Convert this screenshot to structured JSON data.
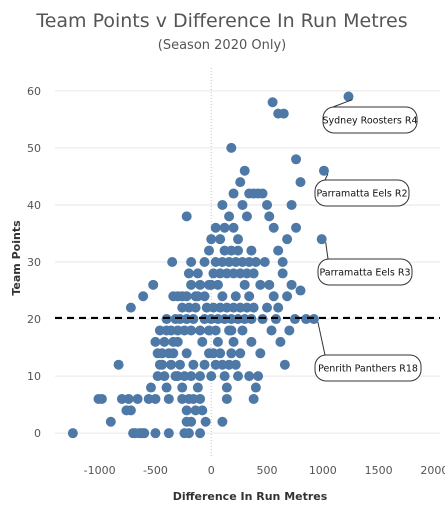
{
  "chart_data": {
    "type": "scatter",
    "title": "Team Points v Difference In Run Metres",
    "subtitle": "(Season 2020 Only)",
    "xlabel": "Difference In Run Metres",
    "ylabel": "Team Points",
    "xlim": [
      -1400,
      2050
    ],
    "ylim": [
      -4,
      64
    ],
    "xticks": [
      -1000,
      -500,
      0,
      500,
      1000,
      1500,
      2000
    ],
    "xtick_labels": [
      "-1000",
      "-500",
      "0",
      "500",
      "1000",
      "1500",
      "2000"
    ],
    "yticks": [
      0,
      10,
      20,
      30,
      40,
      50,
      60
    ],
    "ytick_labels": [
      "0",
      "10",
      "20",
      "30",
      "40",
      "50",
      "60"
    ],
    "grid": true,
    "marker_color": "#4e79a7",
    "reference_line": {
      "y": 20.2,
      "style": "dashed",
      "color": "#000000"
    },
    "annotations": [
      {
        "label": "Sydney Roosters R4",
        "x": 1230,
        "y": 59
      },
      {
        "label": "Parramatta Eels R2",
        "x": 1010,
        "y": 46
      },
      {
        "label": "Parramatta Eels R3",
        "x": 990,
        "y": 34
      },
      {
        "label": "Penrith Panthers R18",
        "x": 920,
        "y": 20
      }
    ],
    "points": [
      [
        -1240,
        0
      ],
      [
        -1010,
        6
      ],
      [
        -980,
        6
      ],
      [
        -900,
        2
      ],
      [
        -830,
        12
      ],
      [
        -800,
        6
      ],
      [
        -760,
        4
      ],
      [
        -740,
        6
      ],
      [
        -720,
        4
      ],
      [
        -700,
        0
      ],
      [
        -680,
        0
      ],
      [
        -660,
        6
      ],
      [
        -640,
        0
      ],
      [
        -620,
        0
      ],
      [
        -600,
        0
      ],
      [
        -500,
        0
      ],
      [
        -380,
        0
      ],
      [
        -240,
        0
      ],
      [
        -200,
        0
      ],
      [
        -100,
        0
      ],
      [
        -50,
        2
      ],
      [
        -220,
        2
      ],
      [
        -720,
        22
      ],
      [
        -610,
        24
      ],
      [
        -520,
        26
      ],
      [
        -400,
        20
      ],
      [
        -560,
        6
      ],
      [
        -540,
        8
      ],
      [
        -500,
        6
      ],
      [
        -480,
        10
      ],
      [
        -460,
        12
      ],
      [
        -440,
        14
      ],
      [
        -420,
        10
      ],
      [
        -400,
        8
      ],
      [
        -380,
        6
      ],
      [
        -360,
        12
      ],
      [
        -340,
        14
      ],
      [
        -320,
        10
      ],
      [
        -300,
        16
      ],
      [
        -280,
        12
      ],
      [
        -260,
        8
      ],
      [
        -240,
        10
      ],
      [
        -220,
        14
      ],
      [
        -200,
        6
      ],
      [
        -180,
        10
      ],
      [
        -160,
        12
      ],
      [
        -140,
        4
      ],
      [
        -120,
        8
      ],
      [
        -100,
        6
      ],
      [
        -80,
        4
      ],
      [
        -500,
        16
      ],
      [
        -480,
        14
      ],
      [
        -460,
        18
      ],
      [
        -440,
        12
      ],
      [
        -420,
        16
      ],
      [
        -400,
        18
      ],
      [
        -380,
        14
      ],
      [
        -360,
        18
      ],
      [
        -340,
        16
      ],
      [
        -320,
        20
      ],
      [
        -300,
        18
      ],
      [
        -280,
        20
      ],
      [
        -260,
        22
      ],
      [
        -240,
        18
      ],
      [
        -220,
        20
      ],
      [
        -200,
        22
      ],
      [
        -180,
        18
      ],
      [
        -160,
        20
      ],
      [
        -140,
        22
      ],
      [
        -120,
        24
      ],
      [
        -100,
        18
      ],
      [
        -80,
        16
      ],
      [
        -60,
        20
      ],
      [
        -40,
        22
      ],
      [
        -20,
        18
      ],
      [
        -340,
        24
      ],
      [
        -300,
        24
      ],
      [
        -260,
        24
      ],
      [
        -220,
        24
      ],
      [
        -180,
        26
      ],
      [
        -140,
        24
      ],
      [
        -100,
        26
      ],
      [
        -60,
        24
      ],
      [
        -20,
        26
      ],
      [
        -300,
        10
      ],
      [
        -260,
        6
      ],
      [
        -220,
        4
      ],
      [
        -180,
        2
      ],
      [
        -160,
        6
      ],
      [
        -100,
        10
      ],
      [
        -60,
        12
      ],
      [
        -20,
        14
      ],
      [
        -350,
        30
      ],
      [
        -200,
        28
      ],
      [
        -180,
        30
      ],
      [
        -120,
        28
      ],
      [
        -60,
        30
      ],
      [
        -20,
        32
      ],
      [
        0,
        10
      ],
      [
        20,
        14
      ],
      [
        40,
        12
      ],
      [
        60,
        16
      ],
      [
        80,
        14
      ],
      [
        100,
        12
      ],
      [
        120,
        10
      ],
      [
        140,
        8
      ],
      [
        160,
        12
      ],
      [
        180,
        14
      ],
      [
        200,
        16
      ],
      [
        220,
        12
      ],
      [
        240,
        10
      ],
      [
        260,
        14
      ],
      [
        180,
        18
      ],
      [
        140,
        6
      ],
      [
        100,
        2
      ],
      [
        0,
        20
      ],
      [
        20,
        22
      ],
      [
        40,
        18
      ],
      [
        60,
        20
      ],
      [
        80,
        22
      ],
      [
        100,
        24
      ],
      [
        120,
        20
      ],
      [
        140,
        22
      ],
      [
        160,
        18
      ],
      [
        180,
        20
      ],
      [
        200,
        22
      ],
      [
        220,
        24
      ],
      [
        240,
        20
      ],
      [
        260,
        22
      ],
      [
        280,
        18
      ],
      [
        300,
        20
      ],
      [
        320,
        22
      ],
      [
        340,
        24
      ],
      [
        360,
        20
      ],
      [
        380,
        22
      ],
      [
        0,
        26
      ],
      [
        20,
        28
      ],
      [
        40,
        30
      ],
      [
        60,
        26
      ],
      [
        80,
        28
      ],
      [
        100,
        30
      ],
      [
        120,
        32
      ],
      [
        140,
        28
      ],
      [
        160,
        30
      ],
      [
        180,
        32
      ],
      [
        200,
        28
      ],
      [
        220,
        30
      ],
      [
        240,
        32
      ],
      [
        260,
        28
      ],
      [
        280,
        30
      ],
      [
        300,
        26
      ],
      [
        320,
        28
      ],
      [
        340,
        30
      ],
      [
        360,
        32
      ],
      [
        380,
        28
      ],
      [
        400,
        30
      ],
      [
        440,
        26
      ],
      [
        480,
        30
      ],
      [
        0,
        34
      ],
      [
        40,
        36
      ],
      [
        80,
        34
      ],
      [
        120,
        36
      ],
      [
        160,
        38
      ],
      [
        200,
        36
      ],
      [
        240,
        34
      ],
      [
        280,
        40
      ],
      [
        320,
        38
      ],
      [
        -220,
        38
      ],
      [
        100,
        40
      ],
      [
        200,
        42
      ],
      [
        260,
        44
      ],
      [
        300,
        46
      ],
      [
        340,
        42
      ],
      [
        380,
        42
      ],
      [
        420,
        42
      ],
      [
        460,
        42
      ],
      [
        500,
        40
      ],
      [
        180,
        50
      ],
      [
        550,
        58
      ],
      [
        600,
        56
      ],
      [
        650,
        56
      ],
      [
        520,
        38
      ],
      [
        560,
        36
      ],
      [
        600,
        32
      ],
      [
        640,
        30
      ],
      [
        680,
        34
      ],
      [
        720,
        40
      ],
      [
        760,
        48
      ],
      [
        800,
        44
      ],
      [
        760,
        36
      ],
      [
        720,
        26
      ],
      [
        680,
        24
      ],
      [
        640,
        28
      ],
      [
        600,
        22
      ],
      [
        560,
        24
      ],
      [
        520,
        26
      ],
      [
        460,
        20
      ],
      [
        500,
        22
      ],
      [
        540,
        18
      ],
      [
        580,
        20
      ],
      [
        620,
        16
      ],
      [
        660,
        12
      ],
      [
        700,
        18
      ],
      [
        750,
        20
      ],
      [
        800,
        25
      ],
      [
        850,
        20
      ],
      [
        440,
        14
      ],
      [
        420,
        10
      ],
      [
        400,
        8
      ],
      [
        380,
        6
      ],
      [
        360,
        16
      ],
      [
        340,
        10
      ],
      [
        1230,
        59
      ],
      [
        1010,
        46
      ],
      [
        990,
        34
      ],
      [
        920,
        20
      ]
    ]
  }
}
